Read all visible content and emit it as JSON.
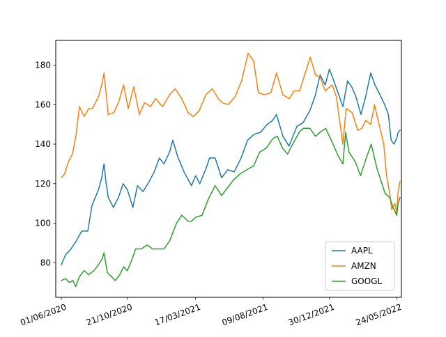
{
  "chart_data": {
    "type": "line",
    "title": "",
    "xlabel": "",
    "ylabel": "",
    "x_ticks": [
      "01/06/2020",
      "21/10/2020",
      "17/03/2021",
      "09/08/2021",
      "30/12/2021",
      "24/05/2022"
    ],
    "y_ticks": [
      80,
      100,
      120,
      140,
      160,
      180
    ],
    "xlim": [
      "2020-05-20",
      "2022-06-03"
    ],
    "ylim": [
      62.5,
      192.5
    ],
    "grid": false,
    "legend_position": "lower-right",
    "series": [
      {
        "name": "AAPL",
        "color": "#1f77b4",
        "points": [
          [
            "2020-06-01",
            79
          ],
          [
            "2020-06-10",
            84
          ],
          [
            "2020-06-22",
            87
          ],
          [
            "2020-07-03",
            91
          ],
          [
            "2020-07-15",
            96
          ],
          [
            "2020-07-28",
            96
          ],
          [
            "2020-08-06",
            109
          ],
          [
            "2020-08-13",
            113
          ],
          [
            "2020-08-20",
            117
          ],
          [
            "2020-08-27",
            123
          ],
          [
            "2020-09-01",
            130
          ],
          [
            "2020-09-05",
            121
          ],
          [
            "2020-09-10",
            113
          ],
          [
            "2020-09-21",
            108
          ],
          [
            "2020-10-02",
            113
          ],
          [
            "2020-10-12",
            120
          ],
          [
            "2020-10-21",
            117
          ],
          [
            "2020-11-02",
            108
          ],
          [
            "2020-11-12",
            119
          ],
          [
            "2020-11-24",
            116
          ],
          [
            "2020-12-07",
            121
          ],
          [
            "2020-12-18",
            126
          ],
          [
            "2020-12-29",
            133
          ],
          [
            "2021-01-08",
            130
          ],
          [
            "2021-01-20",
            136
          ],
          [
            "2021-01-27",
            142
          ],
          [
            "2021-02-06",
            134
          ],
          [
            "2021-02-20",
            126
          ],
          [
            "2021-03-08",
            119
          ],
          [
            "2021-03-17",
            124
          ],
          [
            "2021-03-26",
            120
          ],
          [
            "2021-04-09",
            128
          ],
          [
            "2021-04-16",
            133
          ],
          [
            "2021-04-28",
            133
          ],
          [
            "2021-05-12",
            123
          ],
          [
            "2021-05-25",
            127
          ],
          [
            "2021-06-08",
            126
          ],
          [
            "2021-06-23",
            133
          ],
          [
            "2021-07-07",
            142
          ],
          [
            "2021-07-21",
            145
          ],
          [
            "2021-08-04",
            146
          ],
          [
            "2021-08-18",
            150
          ],
          [
            "2021-08-30",
            152
          ],
          [
            "2021-09-07",
            155
          ],
          [
            "2021-09-21",
            144
          ],
          [
            "2021-10-04",
            139
          ],
          [
            "2021-10-21",
            149
          ],
          [
            "2021-11-04",
            151
          ],
          [
            "2021-11-18",
            157
          ],
          [
            "2021-11-30",
            165
          ],
          [
            "2021-12-10",
            175
          ],
          [
            "2021-12-21",
            170
          ],
          [
            "2021-12-30",
            178
          ],
          [
            "2022-01-07",
            173
          ],
          [
            "2022-01-19",
            165
          ],
          [
            "2022-01-28",
            159
          ],
          [
            "2022-02-07",
            172
          ],
          [
            "2022-02-16",
            169
          ],
          [
            "2022-02-25",
            164
          ],
          [
            "2022-03-08",
            155
          ],
          [
            "2022-03-18",
            164
          ],
          [
            "2022-03-29",
            176
          ],
          [
            "2022-04-07",
            170
          ],
          [
            "2022-04-18",
            165
          ],
          [
            "2022-04-28",
            160
          ],
          [
            "2022-05-06",
            155
          ],
          [
            "2022-05-12",
            142
          ],
          [
            "2022-05-18",
            140
          ],
          [
            "2022-05-24",
            143
          ],
          [
            "2022-05-27",
            146
          ],
          [
            "2022-05-31",
            147
          ]
        ]
      },
      {
        "name": "AMZN",
        "color": "#ff7f0e",
        "points": [
          [
            "2020-06-01",
            123
          ],
          [
            "2020-06-08",
            125
          ],
          [
            "2020-06-16",
            131
          ],
          [
            "2020-06-25",
            135
          ],
          [
            "2020-07-03",
            145
          ],
          [
            "2020-07-10",
            159
          ],
          [
            "2020-07-20",
            154
          ],
          [
            "2020-07-30",
            158
          ],
          [
            "2020-08-07",
            158
          ],
          [
            "2020-08-20",
            164
          ],
          [
            "2020-08-28",
            171
          ],
          [
            "2020-09-01",
            176
          ],
          [
            "2020-09-10",
            155
          ],
          [
            "2020-09-22",
            156
          ],
          [
            "2020-10-02",
            161
          ],
          [
            "2020-10-13",
            170
          ],
          [
            "2020-10-23",
            158
          ],
          [
            "2020-11-04",
            169
          ],
          [
            "2020-11-16",
            155
          ],
          [
            "2020-11-27",
            161
          ],
          [
            "2020-12-10",
            159
          ],
          [
            "2020-12-21",
            163
          ],
          [
            "2021-01-05",
            159
          ],
          [
            "2021-01-20",
            165
          ],
          [
            "2021-02-01",
            168
          ],
          [
            "2021-02-15",
            163
          ],
          [
            "2021-03-01",
            156
          ],
          [
            "2021-03-12",
            154
          ],
          [
            "2021-03-25",
            157
          ],
          [
            "2021-04-08",
            165
          ],
          [
            "2021-04-22",
            168
          ],
          [
            "2021-05-05",
            163
          ],
          [
            "2021-05-13",
            161
          ],
          [
            "2021-05-26",
            160
          ],
          [
            "2021-06-10",
            164
          ],
          [
            "2021-06-24",
            172
          ],
          [
            "2021-07-08",
            186
          ],
          [
            "2021-07-20",
            182
          ],
          [
            "2021-07-30",
            166
          ],
          [
            "2021-08-12",
            165
          ],
          [
            "2021-08-26",
            166
          ],
          [
            "2021-09-07",
            176
          ],
          [
            "2021-09-21",
            165
          ],
          [
            "2021-10-05",
            163
          ],
          [
            "2021-10-15",
            167
          ],
          [
            "2021-10-27",
            167
          ],
          [
            "2021-11-08",
            176
          ],
          [
            "2021-11-19",
            184
          ],
          [
            "2021-11-30",
            175
          ],
          [
            "2021-12-10",
            174
          ],
          [
            "2021-12-21",
            167
          ],
          [
            "2022-01-05",
            170
          ],
          [
            "2022-01-14",
            164
          ],
          [
            "2022-01-28",
            140
          ],
          [
            "2022-02-04",
            158
          ],
          [
            "2022-02-17",
            156
          ],
          [
            "2022-03-01",
            147
          ],
          [
            "2022-03-10",
            148
          ],
          [
            "2022-03-18",
            152
          ],
          [
            "2022-03-29",
            150
          ],
          [
            "2022-04-06",
            160
          ],
          [
            "2022-04-18",
            148
          ],
          [
            "2022-04-26",
            140
          ],
          [
            "2022-05-02",
            124
          ],
          [
            "2022-05-09",
            115
          ],
          [
            "2022-05-13",
            107
          ],
          [
            "2022-05-20",
            110
          ],
          [
            "2022-05-24",
            105
          ],
          [
            "2022-05-27",
            116
          ],
          [
            "2022-05-31",
            121
          ]
        ]
      },
      {
        "name": "GOOGL",
        "color": "#2ca02c",
        "points": [
          [
            "2020-06-01",
            71
          ],
          [
            "2020-06-10",
            72
          ],
          [
            "2020-06-18",
            70
          ],
          [
            "2020-06-26",
            71
          ],
          [
            "2020-07-02",
            68
          ],
          [
            "2020-07-10",
            73
          ],
          [
            "2020-07-20",
            76
          ],
          [
            "2020-07-30",
            74
          ],
          [
            "2020-08-10",
            76
          ],
          [
            "2020-08-20",
            79
          ],
          [
            "2020-08-28",
            82
          ],
          [
            "2020-09-01",
            85
          ],
          [
            "2020-09-08",
            75
          ],
          [
            "2020-09-17",
            73
          ],
          [
            "2020-09-25",
            71
          ],
          [
            "2020-10-05",
            74
          ],
          [
            "2020-10-13",
            78
          ],
          [
            "2020-10-21",
            76
          ],
          [
            "2020-10-30",
            81
          ],
          [
            "2020-11-08",
            87
          ],
          [
            "2020-11-20",
            87
          ],
          [
            "2020-12-03",
            89
          ],
          [
            "2020-12-14",
            87
          ],
          [
            "2020-12-24",
            87
          ],
          [
            "2021-01-08",
            87
          ],
          [
            "2021-01-20",
            91
          ],
          [
            "2021-02-04",
            100
          ],
          [
            "2021-02-15",
            104
          ],
          [
            "2021-03-01",
            101
          ],
          [
            "2021-03-08",
            101
          ],
          [
            "2021-03-17",
            103
          ],
          [
            "2021-03-31",
            104
          ],
          [
            "2021-04-13",
            112
          ],
          [
            "2021-04-28",
            119
          ],
          [
            "2021-05-12",
            114
          ],
          [
            "2021-05-25",
            118
          ],
          [
            "2021-06-07",
            122
          ],
          [
            "2021-06-21",
            125
          ],
          [
            "2021-07-05",
            127
          ],
          [
            "2021-07-20",
            129
          ],
          [
            "2021-08-02",
            136
          ],
          [
            "2021-08-16",
            138
          ],
          [
            "2021-08-31",
            143
          ],
          [
            "2021-09-09",
            144
          ],
          [
            "2021-09-20",
            138
          ],
          [
            "2021-10-01",
            135
          ],
          [
            "2021-10-12",
            140
          ],
          [
            "2021-10-26",
            146
          ],
          [
            "2021-11-04",
            148
          ],
          [
            "2021-11-18",
            148
          ],
          [
            "2021-11-30",
            144
          ],
          [
            "2021-12-10",
            146
          ],
          [
            "2021-12-22",
            148
          ],
          [
            "2022-01-05",
            141
          ],
          [
            "2022-01-18",
            134
          ],
          [
            "2022-01-28",
            130
          ],
          [
            "2022-02-03",
            146
          ],
          [
            "2022-02-10",
            136
          ],
          [
            "2022-02-24",
            131
          ],
          [
            "2022-03-07",
            124
          ],
          [
            "2022-03-18",
            132
          ],
          [
            "2022-03-30",
            140
          ],
          [
            "2022-04-11",
            128
          ],
          [
            "2022-04-22",
            120
          ],
          [
            "2022-04-29",
            115
          ],
          [
            "2022-05-09",
            113
          ],
          [
            "2022-05-16",
            108
          ],
          [
            "2022-05-20",
            106
          ],
          [
            "2022-05-24",
            104
          ],
          [
            "2022-05-27",
            110
          ],
          [
            "2022-05-31",
            113
          ]
        ]
      }
    ]
  }
}
